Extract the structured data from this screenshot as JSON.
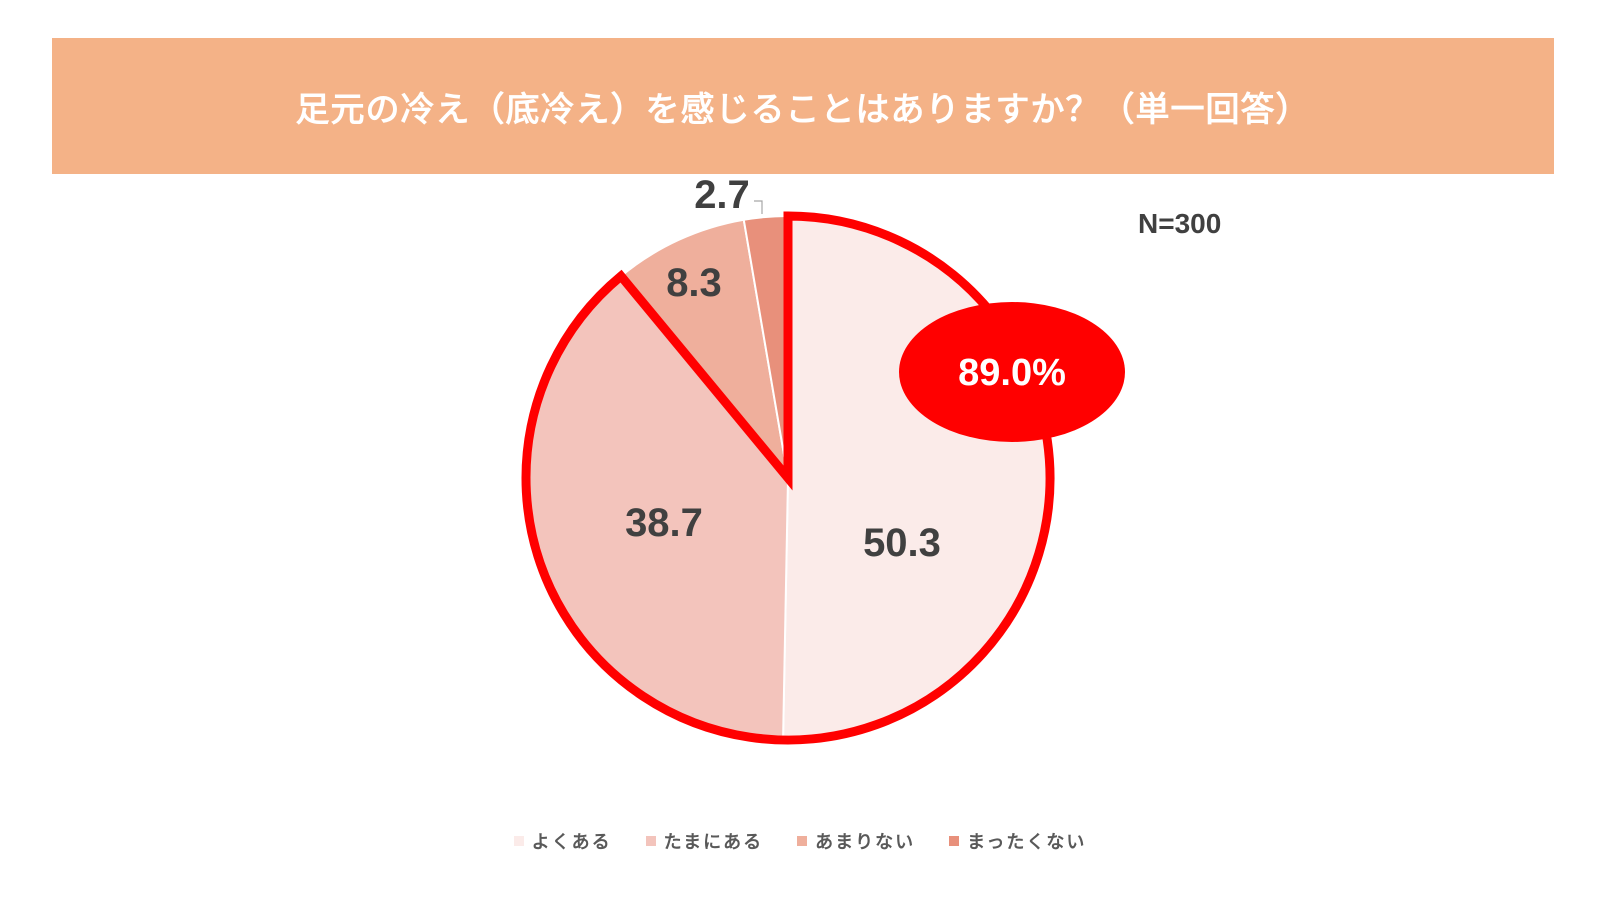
{
  "colors": {
    "banner": "#F4B287",
    "highlight": "#FF0000",
    "slices": [
      "#FBEBE9",
      "#F3C4BC",
      "#EFAF9C",
      "#E8907B"
    ]
  },
  "header": {
    "title": "足元の冷え（底冷え）を感じることはありますか？（単一回答）"
  },
  "sample": {
    "label": "N=300"
  },
  "callout": {
    "label": "89.0%"
  },
  "chart_data": {
    "type": "pie",
    "title": "足元の冷え（底冷え）を感じることはありますか？（単一回答）",
    "categories": [
      "よくある",
      "たまにある",
      "あまりない",
      "まったくない"
    ],
    "values": [
      50.3,
      38.7,
      8.3,
      2.7
    ],
    "labels": [
      "50.3",
      "38.7",
      "8.3",
      "2.7"
    ],
    "legend_position": "bottom",
    "annotation": "89.0%",
    "note": "N=300"
  }
}
